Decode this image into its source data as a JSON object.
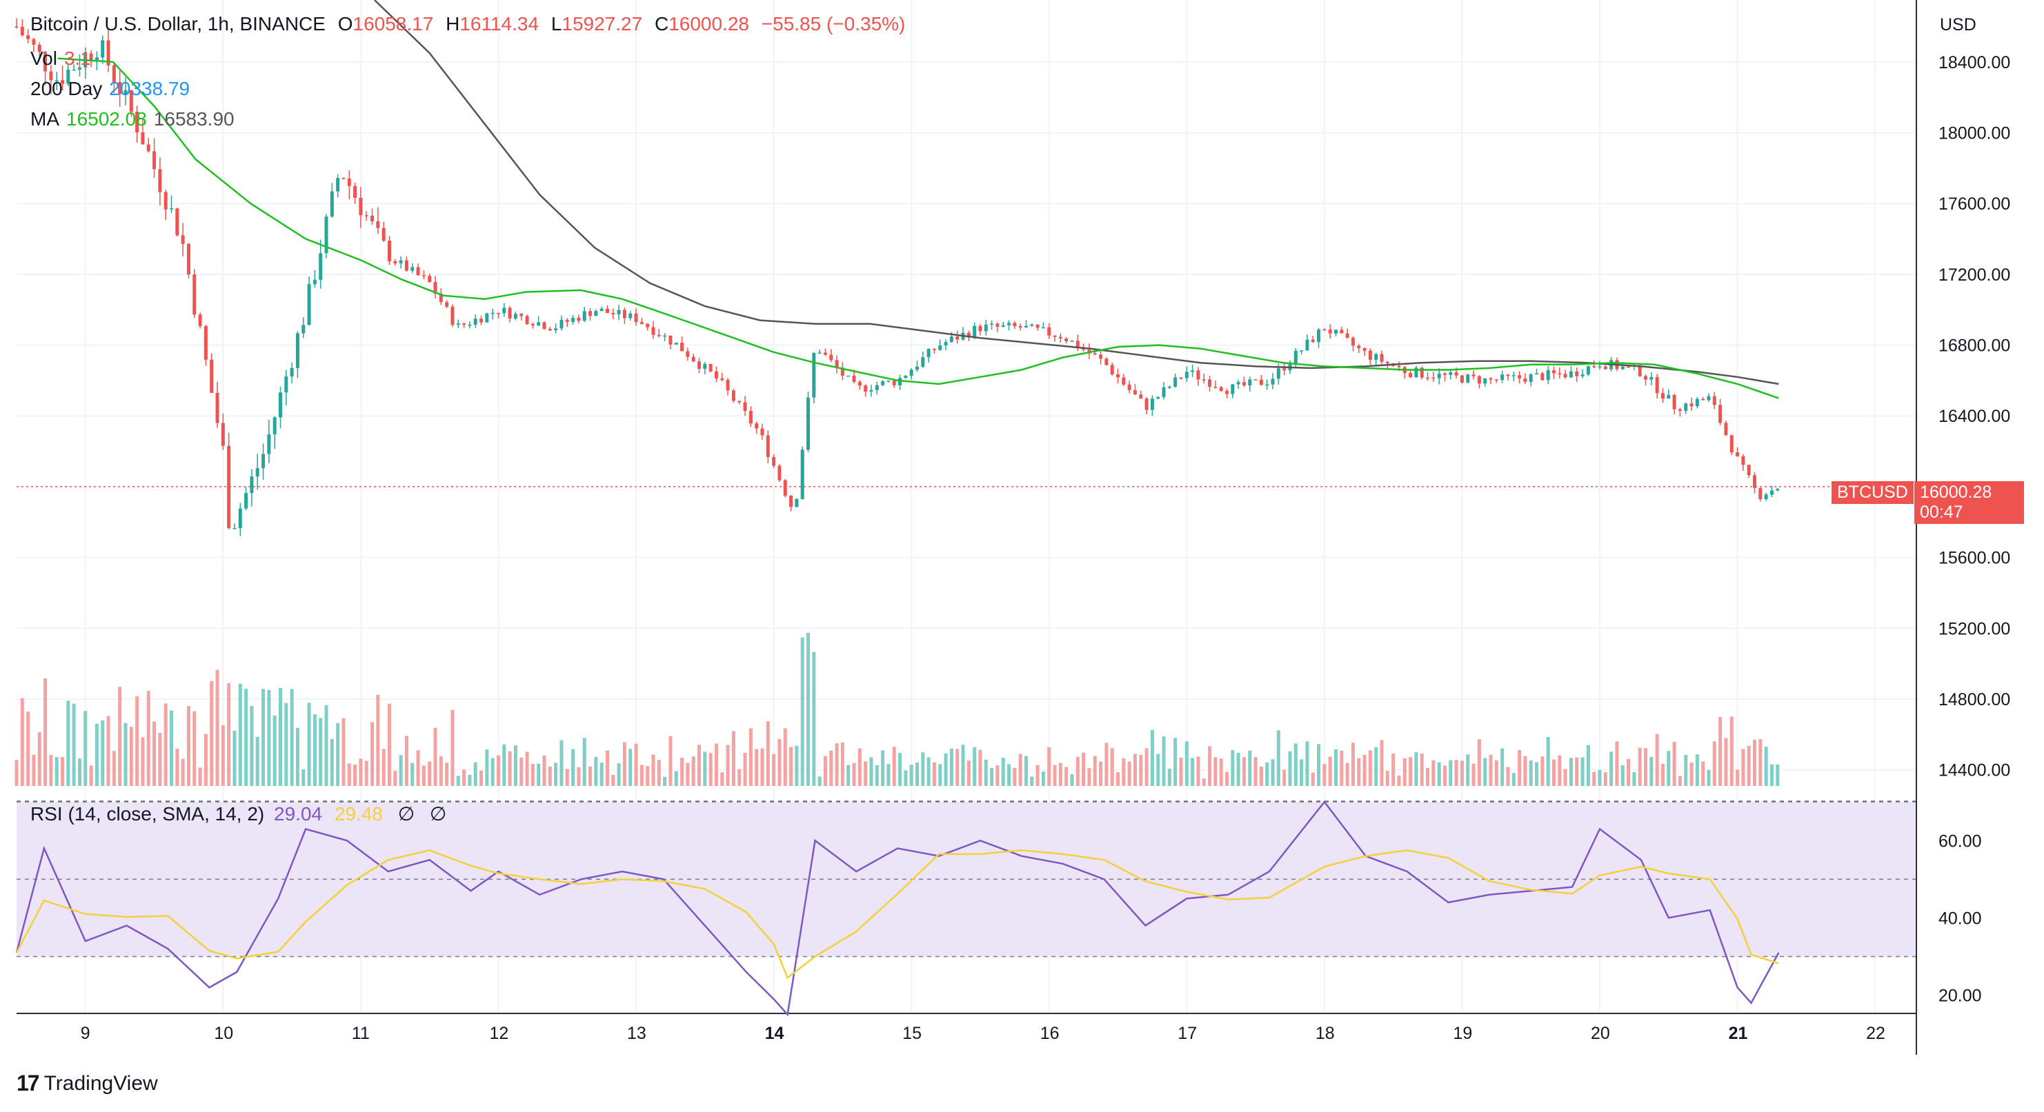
{
  "header": {
    "symbol_title": "Bitcoin / U.S. Dollar, 1h, BINANCE",
    "open_label": "O",
    "open_value": "16058.17",
    "high_label": "H",
    "high_value": "16114.34",
    "low_label": "L",
    "low_value": "15927.27",
    "close_label": "C",
    "close_value": "16000.28",
    "change": "−55.85 (−0.35%)",
    "vol_label": "Vol",
    "vol_value": "3.1",
    "ma200_label": "200 Day",
    "ma200_value": "20338.79",
    "ma_label": "MA",
    "ma_value_1": "16502.08",
    "ma_value_2": "16583.90"
  },
  "rsi_legend": {
    "label": "RSI (14, close, SMA, 14, 2)",
    "rsi_value": "29.04",
    "sma_value": "29.48",
    "empty_1": "∅",
    "empty_2": "∅"
  },
  "price_axis": {
    "currency": "USD",
    "ticks": [
      "18400.00",
      "18000.00",
      "17600.00",
      "17200.00",
      "16800.00",
      "16400.00",
      "15600.00",
      "15200.00",
      "14800.00",
      "14400.00"
    ]
  },
  "rsi_axis": {
    "ticks": [
      "60.00",
      "40.00",
      "20.00"
    ]
  },
  "time_axis": {
    "ticks": [
      "9",
      "10",
      "11",
      "12",
      "13",
      "14",
      "15",
      "16",
      "17",
      "18",
      "19",
      "20",
      "21",
      "22"
    ]
  },
  "last_price": {
    "symbol_tag": "BTCUSD",
    "price_tag": "16000.28",
    "countdown": "00:47"
  },
  "branding": {
    "logo_text": "TradingView",
    "logo_mark": "17"
  },
  "colors": {
    "up": "#26a69a",
    "down": "#ef5350",
    "up_vol": "#7fcfc6",
    "down_vol": "#f5a3a2",
    "ma_green": "#1fbf1f",
    "ma_gray": "#555555",
    "rsi_line": "#7e57c2",
    "rsi_sma": "#f3d13a",
    "rsi_band": "#ece5f8"
  },
  "chart_data": {
    "type": "candlestick",
    "timeframe": "1h",
    "x_ticks": [
      "9",
      "10",
      "11",
      "12",
      "13",
      "14",
      "15",
      "16",
      "17",
      "18",
      "19",
      "20",
      "21",
      "22"
    ],
    "price_range": [
      14270,
      18750
    ],
    "rsi_range": [
      16,
      72
    ],
    "rsi_bands": [
      30,
      50,
      70
    ],
    "ma_green_points": [
      [
        8.8,
        18420
      ],
      [
        9.2,
        18400
      ],
      [
        9.5,
        18150
      ],
      [
        9.8,
        17850
      ],
      [
        10.2,
        17600
      ],
      [
        10.6,
        17400
      ],
      [
        11.0,
        17280
      ],
      [
        11.3,
        17170
      ],
      [
        11.6,
        17080
      ],
      [
        11.9,
        17060
      ],
      [
        12.2,
        17100
      ],
      [
        12.6,
        17110
      ],
      [
        12.9,
        17060
      ],
      [
        13.2,
        16980
      ],
      [
        13.6,
        16870
      ],
      [
        14.0,
        16760
      ],
      [
        14.3,
        16700
      ],
      [
        14.6,
        16650
      ],
      [
        14.9,
        16600
      ],
      [
        15.2,
        16580
      ],
      [
        15.5,
        16620
      ],
      [
        15.8,
        16660
      ],
      [
        16.1,
        16730
      ],
      [
        16.5,
        16790
      ],
      [
        16.8,
        16800
      ],
      [
        17.1,
        16780
      ],
      [
        17.4,
        16740
      ],
      [
        17.7,
        16700
      ],
      [
        18.0,
        16680
      ],
      [
        18.3,
        16670
      ],
      [
        18.6,
        16660
      ],
      [
        18.9,
        16660
      ],
      [
        19.2,
        16670
      ],
      [
        19.5,
        16690
      ],
      [
        19.8,
        16690
      ],
      [
        20.1,
        16700
      ],
      [
        20.4,
        16690
      ],
      [
        20.7,
        16640
      ],
      [
        21.0,
        16580
      ],
      [
        21.3,
        16500
      ]
    ],
    "ma_gray_points": [
      [
        11.1,
        18750
      ],
      [
        11.5,
        18450
      ],
      [
        11.9,
        18050
      ],
      [
        12.3,
        17650
      ],
      [
        12.7,
        17350
      ],
      [
        13.1,
        17150
      ],
      [
        13.5,
        17020
      ],
      [
        13.9,
        16940
      ],
      [
        14.3,
        16920
      ],
      [
        14.7,
        16920
      ],
      [
        15.1,
        16880
      ],
      [
        15.5,
        16840
      ],
      [
        15.9,
        16810
      ],
      [
        16.3,
        16780
      ],
      [
        16.7,
        16740
      ],
      [
        17.1,
        16700
      ],
      [
        17.5,
        16680
      ],
      [
        17.9,
        16670
      ],
      [
        18.3,
        16680
      ],
      [
        18.7,
        16700
      ],
      [
        19.1,
        16710
      ],
      [
        19.5,
        16710
      ],
      [
        19.9,
        16700
      ],
      [
        20.3,
        16680
      ],
      [
        20.7,
        16650
      ],
      [
        21.0,
        16620
      ],
      [
        21.3,
        16580
      ]
    ],
    "rsi_sample": [
      [
        8.5,
        31
      ],
      [
        8.7,
        58
      ],
      [
        9.0,
        34
      ],
      [
        9.3,
        38
      ],
      [
        9.6,
        32
      ],
      [
        9.9,
        22
      ],
      [
        10.1,
        26
      ],
      [
        10.4,
        45
      ],
      [
        10.6,
        63
      ],
      [
        10.9,
        60
      ],
      [
        11.2,
        52
      ],
      [
        11.5,
        55
      ],
      [
        11.8,
        47
      ],
      [
        12.0,
        52
      ],
      [
        12.3,
        46
      ],
      [
        12.6,
        50
      ],
      [
        12.9,
        52
      ],
      [
        13.2,
        50
      ],
      [
        13.5,
        38
      ],
      [
        13.8,
        26
      ],
      [
        14.0,
        19
      ],
      [
        14.1,
        15
      ],
      [
        14.3,
        60
      ],
      [
        14.6,
        52
      ],
      [
        14.9,
        58
      ],
      [
        15.2,
        56
      ],
      [
        15.5,
        60
      ],
      [
        15.8,
        56
      ],
      [
        16.1,
        54
      ],
      [
        16.4,
        50
      ],
      [
        16.7,
        38
      ],
      [
        17.0,
        45
      ],
      [
        17.3,
        46
      ],
      [
        17.6,
        52
      ],
      [
        18.0,
        70
      ],
      [
        18.3,
        56
      ],
      [
        18.6,
        52
      ],
      [
        18.9,
        44
      ],
      [
        19.2,
        46
      ],
      [
        19.5,
        47
      ],
      [
        19.8,
        48
      ],
      [
        20.0,
        63
      ],
      [
        20.3,
        55
      ],
      [
        20.5,
        40
      ],
      [
        20.8,
        42
      ],
      [
        21.0,
        22
      ],
      [
        21.1,
        18
      ],
      [
        21.3,
        31
      ]
    ],
    "rsi_last": 29.04,
    "rsi_sma_last": 29.48,
    "last_close": 16000.28
  }
}
